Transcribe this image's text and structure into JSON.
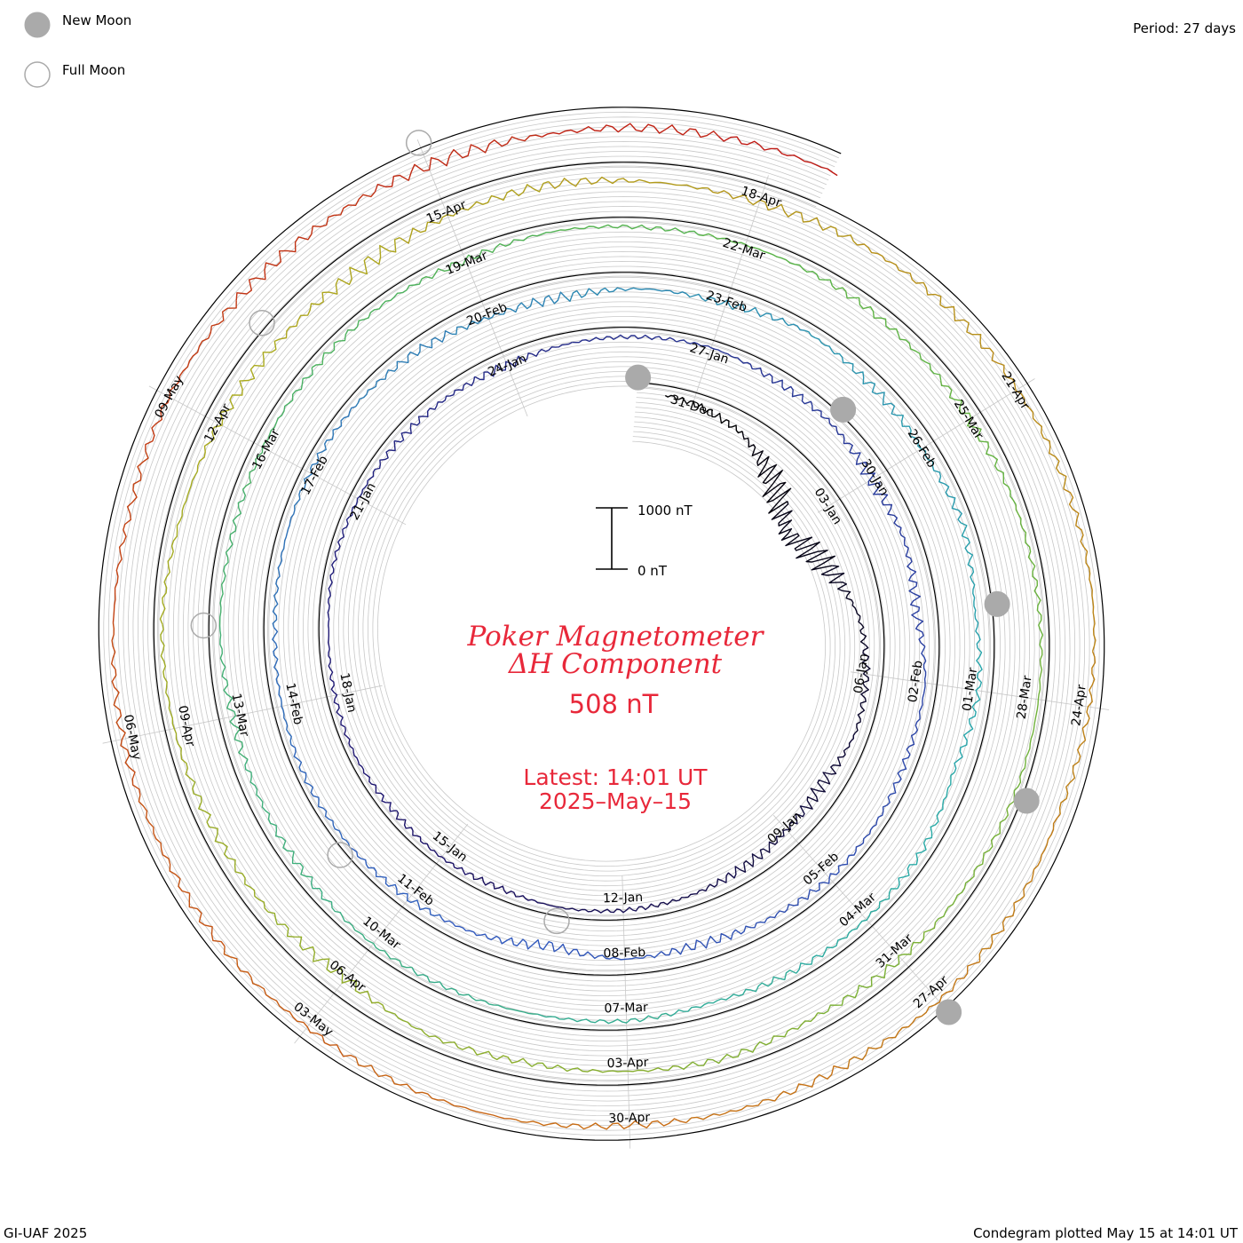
{
  "header": {
    "legend_new_moon": "New Moon",
    "legend_full_moon": "Full Moon",
    "period": "Period: 27 days"
  },
  "center": {
    "title_line1": "Poker Magnetometer",
    "title_line2": "ΔH Component",
    "current_value": "508 nT",
    "latest_line1": "Latest: 14:01 UT",
    "latest_line2": "2025–May–15"
  },
  "scale_bar": {
    "top_label": "1000 nT",
    "bottom_label": "0 nT"
  },
  "footer": {
    "credit": "GI-UAF 2025",
    "plotted": "Condegram plotted May 15 at 14:01 UT"
  },
  "colors": {
    "title_red": "#e8283a",
    "new_moon_fill": "#aaaaaa",
    "grid_gray": "#c8c8c8",
    "baseline_black": "#000000"
  },
  "chart_data": {
    "type": "line",
    "subtype": "condegram (spiral time series, 27-day period)",
    "component": "ΔH",
    "units": "nT",
    "period_days": 27,
    "time_range": [
      "2024-12-30",
      "2025-05-15"
    ],
    "date_labels": [
      "31-Dec",
      "03-Jan",
      "06-Jan",
      "09-Jan",
      "12-Jan",
      "15-Jan",
      "18-Jan",
      "21-Jan",
      "24-Jan",
      "27-Jan",
      "30-Jan",
      "02-Feb",
      "05-Feb",
      "08-Feb",
      "11-Feb",
      "14-Feb",
      "17-Feb",
      "20-Feb",
      "23-Feb",
      "26-Feb",
      "01-Mar",
      "04-Mar",
      "07-Mar",
      "10-Mar",
      "13-Mar",
      "16-Mar",
      "19-Mar",
      "22-Mar",
      "25-Mar",
      "28-Mar",
      "31-Mar",
      "03-Apr",
      "06-Apr",
      "09-Apr",
      "12-Apr",
      "15-Apr",
      "18-Apr",
      "21-Apr",
      "24-Apr",
      "27-Apr",
      "30-Apr",
      "03-May",
      "06-May",
      "09-May"
    ],
    "daily_delta_h_nT": [
      120,
      180,
      320,
      650,
      1050,
      700,
      380,
      260,
      220,
      340,
      300,
      240,
      180,
      150,
      140,
      170,
      130,
      150,
      110,
      130,
      160,
      120,
      140,
      170,
      190,
      230,
      180,
      150,
      120,
      200,
      210,
      300,
      260,
      350,
      190,
      200,
      150,
      140,
      210,
      280,
      250,
      400,
      230,
      170,
      130,
      120,
      150,
      180,
      160,
      140,
      150,
      190,
      290,
      320,
      260,
      270,
      150,
      210,
      230,
      170,
      290,
      210,
      300,
      170,
      150,
      160,
      210,
      140,
      150,
      130,
      120,
      170,
      200,
      230,
      180,
      200,
      170,
      150,
      140,
      180,
      130,
      160,
      150,
      170,
      200,
      220,
      160,
      140,
      120,
      130,
      160,
      190,
      240,
      170,
      220,
      250,
      200,
      310,
      230,
      200,
      150,
      130,
      210,
      250,
      320,
      360,
      300,
      270,
      310,
      330,
      270,
      220,
      190,
      170,
      150,
      180,
      250,
      190,
      160,
      210,
      200,
      240,
      190,
      180,
      190,
      170,
      200,
      190,
      240,
      280,
      220,
      260,
      300,
      310,
      350,
      330
    ],
    "new_moon_dates": [
      "2024-12-30",
      "2025-01-29",
      "2025-02-28",
      "2025-03-29",
      "2025-04-27"
    ],
    "full_moon_dates": [
      "2025-01-13",
      "2025-02-12",
      "2025-03-14",
      "2025-04-13",
      "2025-05-12"
    ],
    "latest_value_nT": 508,
    "scale_bar_nT": [
      0,
      1000
    ]
  }
}
